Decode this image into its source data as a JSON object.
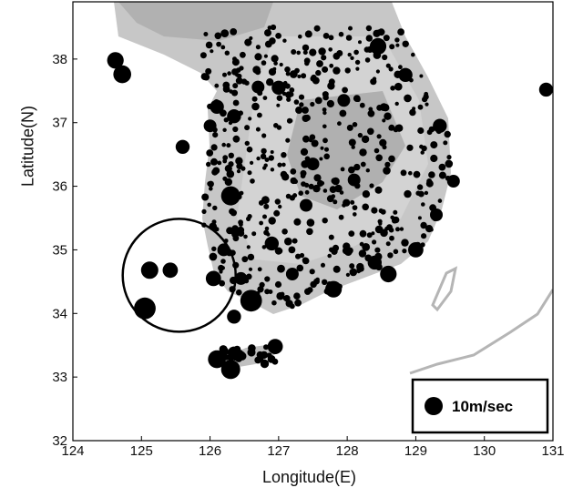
{
  "chart_data": {
    "type": "scatter",
    "xlabel": "Longitude(E)",
    "ylabel": "Latitude(N)",
    "xlim": [
      124,
      131
    ],
    "ylim": [
      32,
      38.9
    ],
    "xticks": [
      124,
      125,
      126,
      127,
      128,
      129,
      130,
      131
    ],
    "yticks": [
      32,
      33,
      34,
      35,
      36,
      37,
      38
    ],
    "legend": {
      "label": "10m/sec",
      "position": "bottom-right"
    },
    "annotation": {
      "shape": "circle",
      "center_lon": 125.55,
      "center_lat": 34.6,
      "note": "highlighted offshore region"
    },
    "points": [
      {
        "lon": 124.62,
        "lat": 37.98,
        "size": 1.3
      },
      {
        "lon": 124.72,
        "lat": 37.76,
        "size": 1.4
      },
      {
        "lon": 125.12,
        "lat": 34.68,
        "size": 1.35
      },
      {
        "lon": 125.42,
        "lat": 34.68,
        "size": 1.2
      },
      {
        "lon": 125.05,
        "lat": 34.08,
        "size": 1.7
      },
      {
        "lon": 125.6,
        "lat": 36.62,
        "size": 1.1
      },
      {
        "lon": 126.1,
        "lat": 37.25,
        "size": 1.1
      },
      {
        "lon": 126.0,
        "lat": 36.95,
        "size": 1.0
      },
      {
        "lon": 126.3,
        "lat": 35.85,
        "size": 1.5
      },
      {
        "lon": 126.05,
        "lat": 34.55,
        "size": 1.2
      },
      {
        "lon": 126.6,
        "lat": 34.2,
        "size": 1.7
      },
      {
        "lon": 126.35,
        "lat": 33.95,
        "size": 1.1
      },
      {
        "lon": 126.9,
        "lat": 35.1,
        "size": 1.1
      },
      {
        "lon": 126.1,
        "lat": 33.28,
        "size": 1.4
      },
      {
        "lon": 126.3,
        "lat": 33.12,
        "size": 1.5
      },
      {
        "lon": 126.35,
        "lat": 33.38,
        "size": 1.0
      },
      {
        "lon": 126.95,
        "lat": 33.48,
        "size": 1.2
      },
      {
        "lon": 126.7,
        "lat": 37.56,
        "size": 1.0
      },
      {
        "lon": 127.0,
        "lat": 37.55,
        "size": 1.1
      },
      {
        "lon": 127.8,
        "lat": 34.38,
        "size": 1.3
      },
      {
        "lon": 128.4,
        "lat": 34.8,
        "size": 1.1
      },
      {
        "lon": 128.6,
        "lat": 34.62,
        "size": 1.3
      },
      {
        "lon": 129.0,
        "lat": 35.0,
        "size": 1.2
      },
      {
        "lon": 129.35,
        "lat": 36.95,
        "size": 1.1
      },
      {
        "lon": 129.55,
        "lat": 36.08,
        "size": 1.0
      },
      {
        "lon": 128.45,
        "lat": 38.2,
        "size": 1.3
      },
      {
        "lon": 128.85,
        "lat": 37.75,
        "size": 1.1
      },
      {
        "lon": 130.9,
        "lat": 37.52,
        "size": 1.1
      },
      {
        "lon": 126.35,
        "lat": 37.1,
        "size": 1.1
      },
      {
        "lon": 127.5,
        "lat": 36.35,
        "size": 1.0
      },
      {
        "lon": 127.2,
        "lat": 34.62,
        "size": 1.0
      },
      {
        "lon": 126.45,
        "lat": 34.55,
        "size": 1.0
      },
      {
        "lon": 127.4,
        "lat": 35.7,
        "size": 1.0
      },
      {
        "lon": 128.1,
        "lat": 36.1,
        "size": 1.0
      },
      {
        "lon": 127.95,
        "lat": 37.35,
        "size": 1.0
      },
      {
        "lon": 129.3,
        "lat": 35.55,
        "size": 1.0
      },
      {
        "lon": 126.2,
        "lat": 35.0,
        "size": 1.0
      }
    ]
  }
}
